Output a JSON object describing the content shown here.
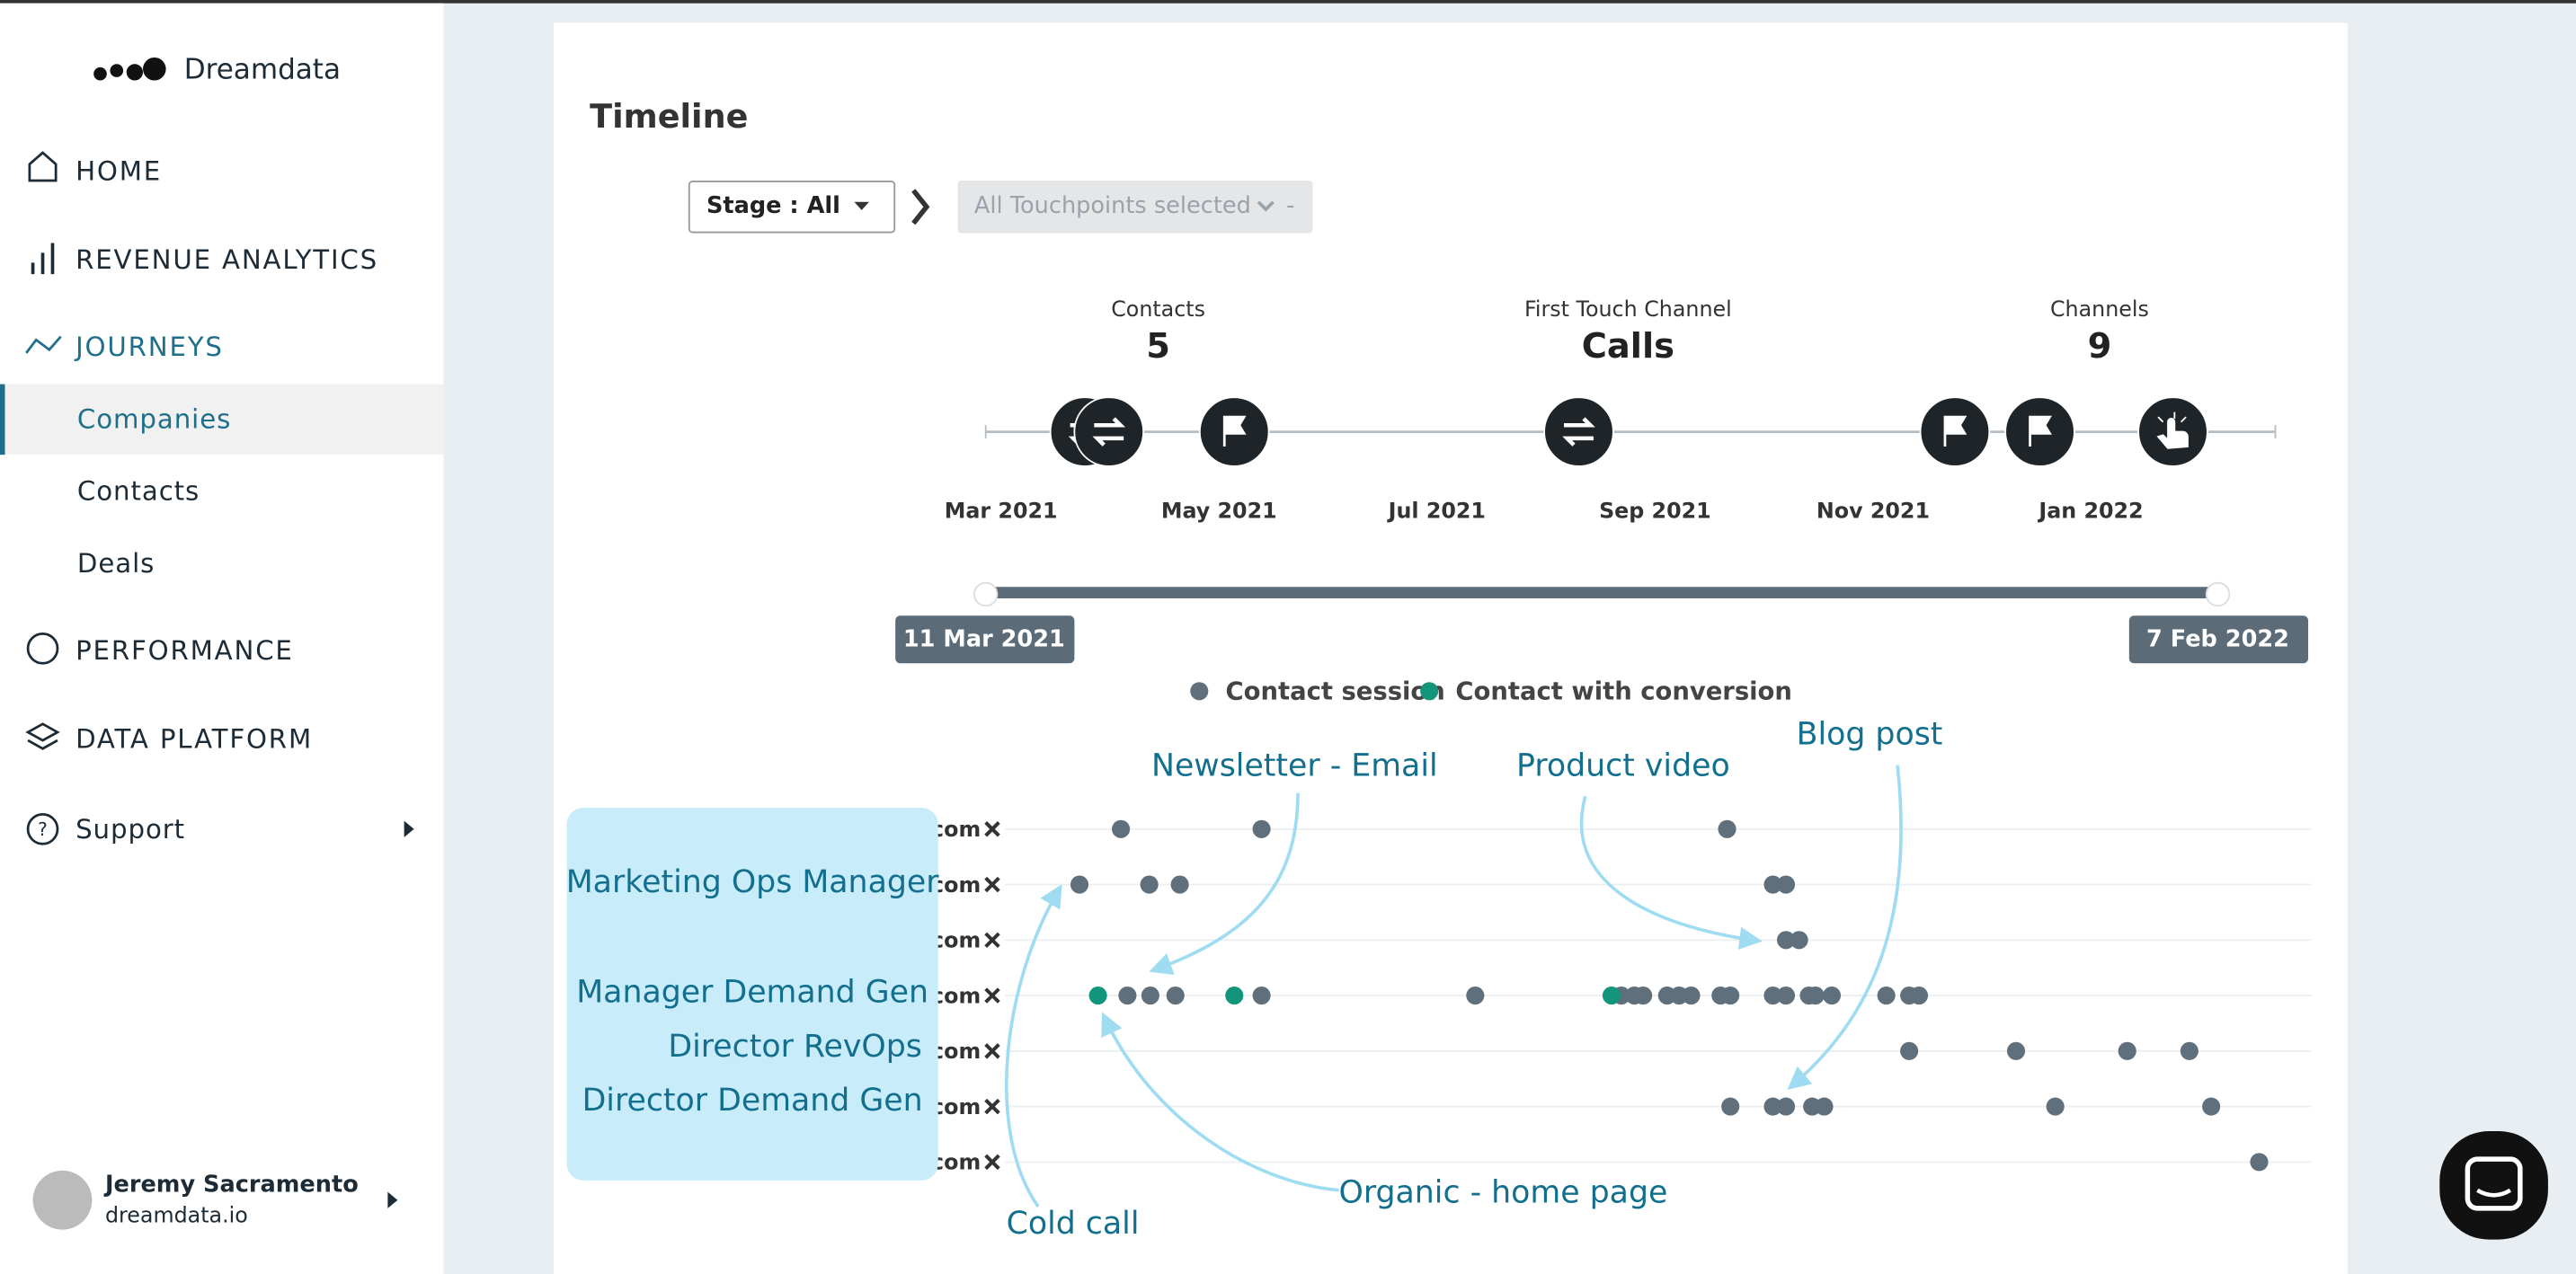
{
  "sidebar": {
    "brand": "Dreamdata",
    "nav": [
      "HOME",
      "REVENUE ANALYTICS",
      "JOURNEYS"
    ],
    "sub": [
      "Companies",
      "Contacts",
      "Deals"
    ],
    "nav2": [
      "PERFORMANCE",
      "DATA PLATFORM",
      "Support"
    ],
    "user": {
      "name": "Jeremy Sacramento",
      "org": "dreamdata.io"
    }
  },
  "main": {
    "title": "Timeline",
    "stage_filter": "Stage : All",
    "touchpoint_filter": "All Touchpoints selected",
    "touchpoint_suffix": "-",
    "stats": [
      {
        "label": "Contacts",
        "value": 5
      },
      {
        "label": "First Touch Channel",
        "value": "Calls"
      },
      {
        "label": "Channels",
        "value": 9
      }
    ],
    "range": {
      "start": "11 Mar 2021",
      "end": "7 Feb 2022"
    }
  },
  "chart_data": [
    {
      "type": "timeline",
      "xlim": [
        2.86,
        14.69
      ],
      "xticks": [
        {
          "value": 3,
          "label": "Mar 2021"
        },
        {
          "value": 5,
          "label": "May 2021"
        },
        {
          "value": 7,
          "label": "Jul 2021"
        },
        {
          "value": 9,
          "label": "Sep 2021"
        },
        {
          "value": 11,
          "label": "Nov 2021"
        },
        {
          "value": 13,
          "label": "Jan 2022"
        }
      ],
      "touchpoints": {
        "x": [
          3.77,
          3.99,
          5.14,
          8.3,
          11.75,
          12.53,
          13.75
        ],
        "icon": [
          "call",
          "call",
          "flag",
          "call",
          "flag",
          "flag",
          "click"
        ]
      }
    },
    {
      "type": "scatter",
      "xlim": [
        2.86,
        15.02
      ],
      "categories": [
        ".com",
        ".com",
        ".com",
        ".com",
        ".com",
        ".com",
        ".com"
      ],
      "series": [
        {
          "name": "Contact session",
          "color": "#5f6f7c",
          "values": [
            [
              4.1,
              5.39,
              9.66
            ],
            [
              3.72,
              4.36,
              4.64,
              10.08,
              10.2
            ],
            [
              10.2,
              10.32
            ],
            [
              4.16,
              4.37,
              4.6,
              5.39,
              7.35,
              8.69,
              8.81,
              8.89,
              9.11,
              9.22,
              9.33,
              9.6,
              9.69,
              10.08,
              10.2,
              10.41,
              10.47,
              10.62,
              11.12,
              11.33,
              11.42
            ],
            [
              11.33,
              12.31,
              13.33,
              13.9
            ],
            [
              9.69,
              10.08,
              10.2,
              10.44,
              10.55,
              12.67,
              14.1
            ],
            [
              14.54
            ]
          ]
        },
        {
          "name": "Contact with conversion",
          "color": "#12957a",
          "values": [
            [],
            [],
            [],
            [
              3.89,
              5.14,
              8.6
            ],
            [],
            [],
            []
          ]
        }
      ]
    }
  ],
  "annotations": {
    "roles": [
      "Marketing Ops Manager",
      "Manager Demand Gen",
      "Director RevOps",
      "Director Demand Gen"
    ],
    "callouts": [
      "Newsletter - Email",
      "Product video",
      "Blog post",
      "Cold call",
      "Organic - home page"
    ]
  }
}
